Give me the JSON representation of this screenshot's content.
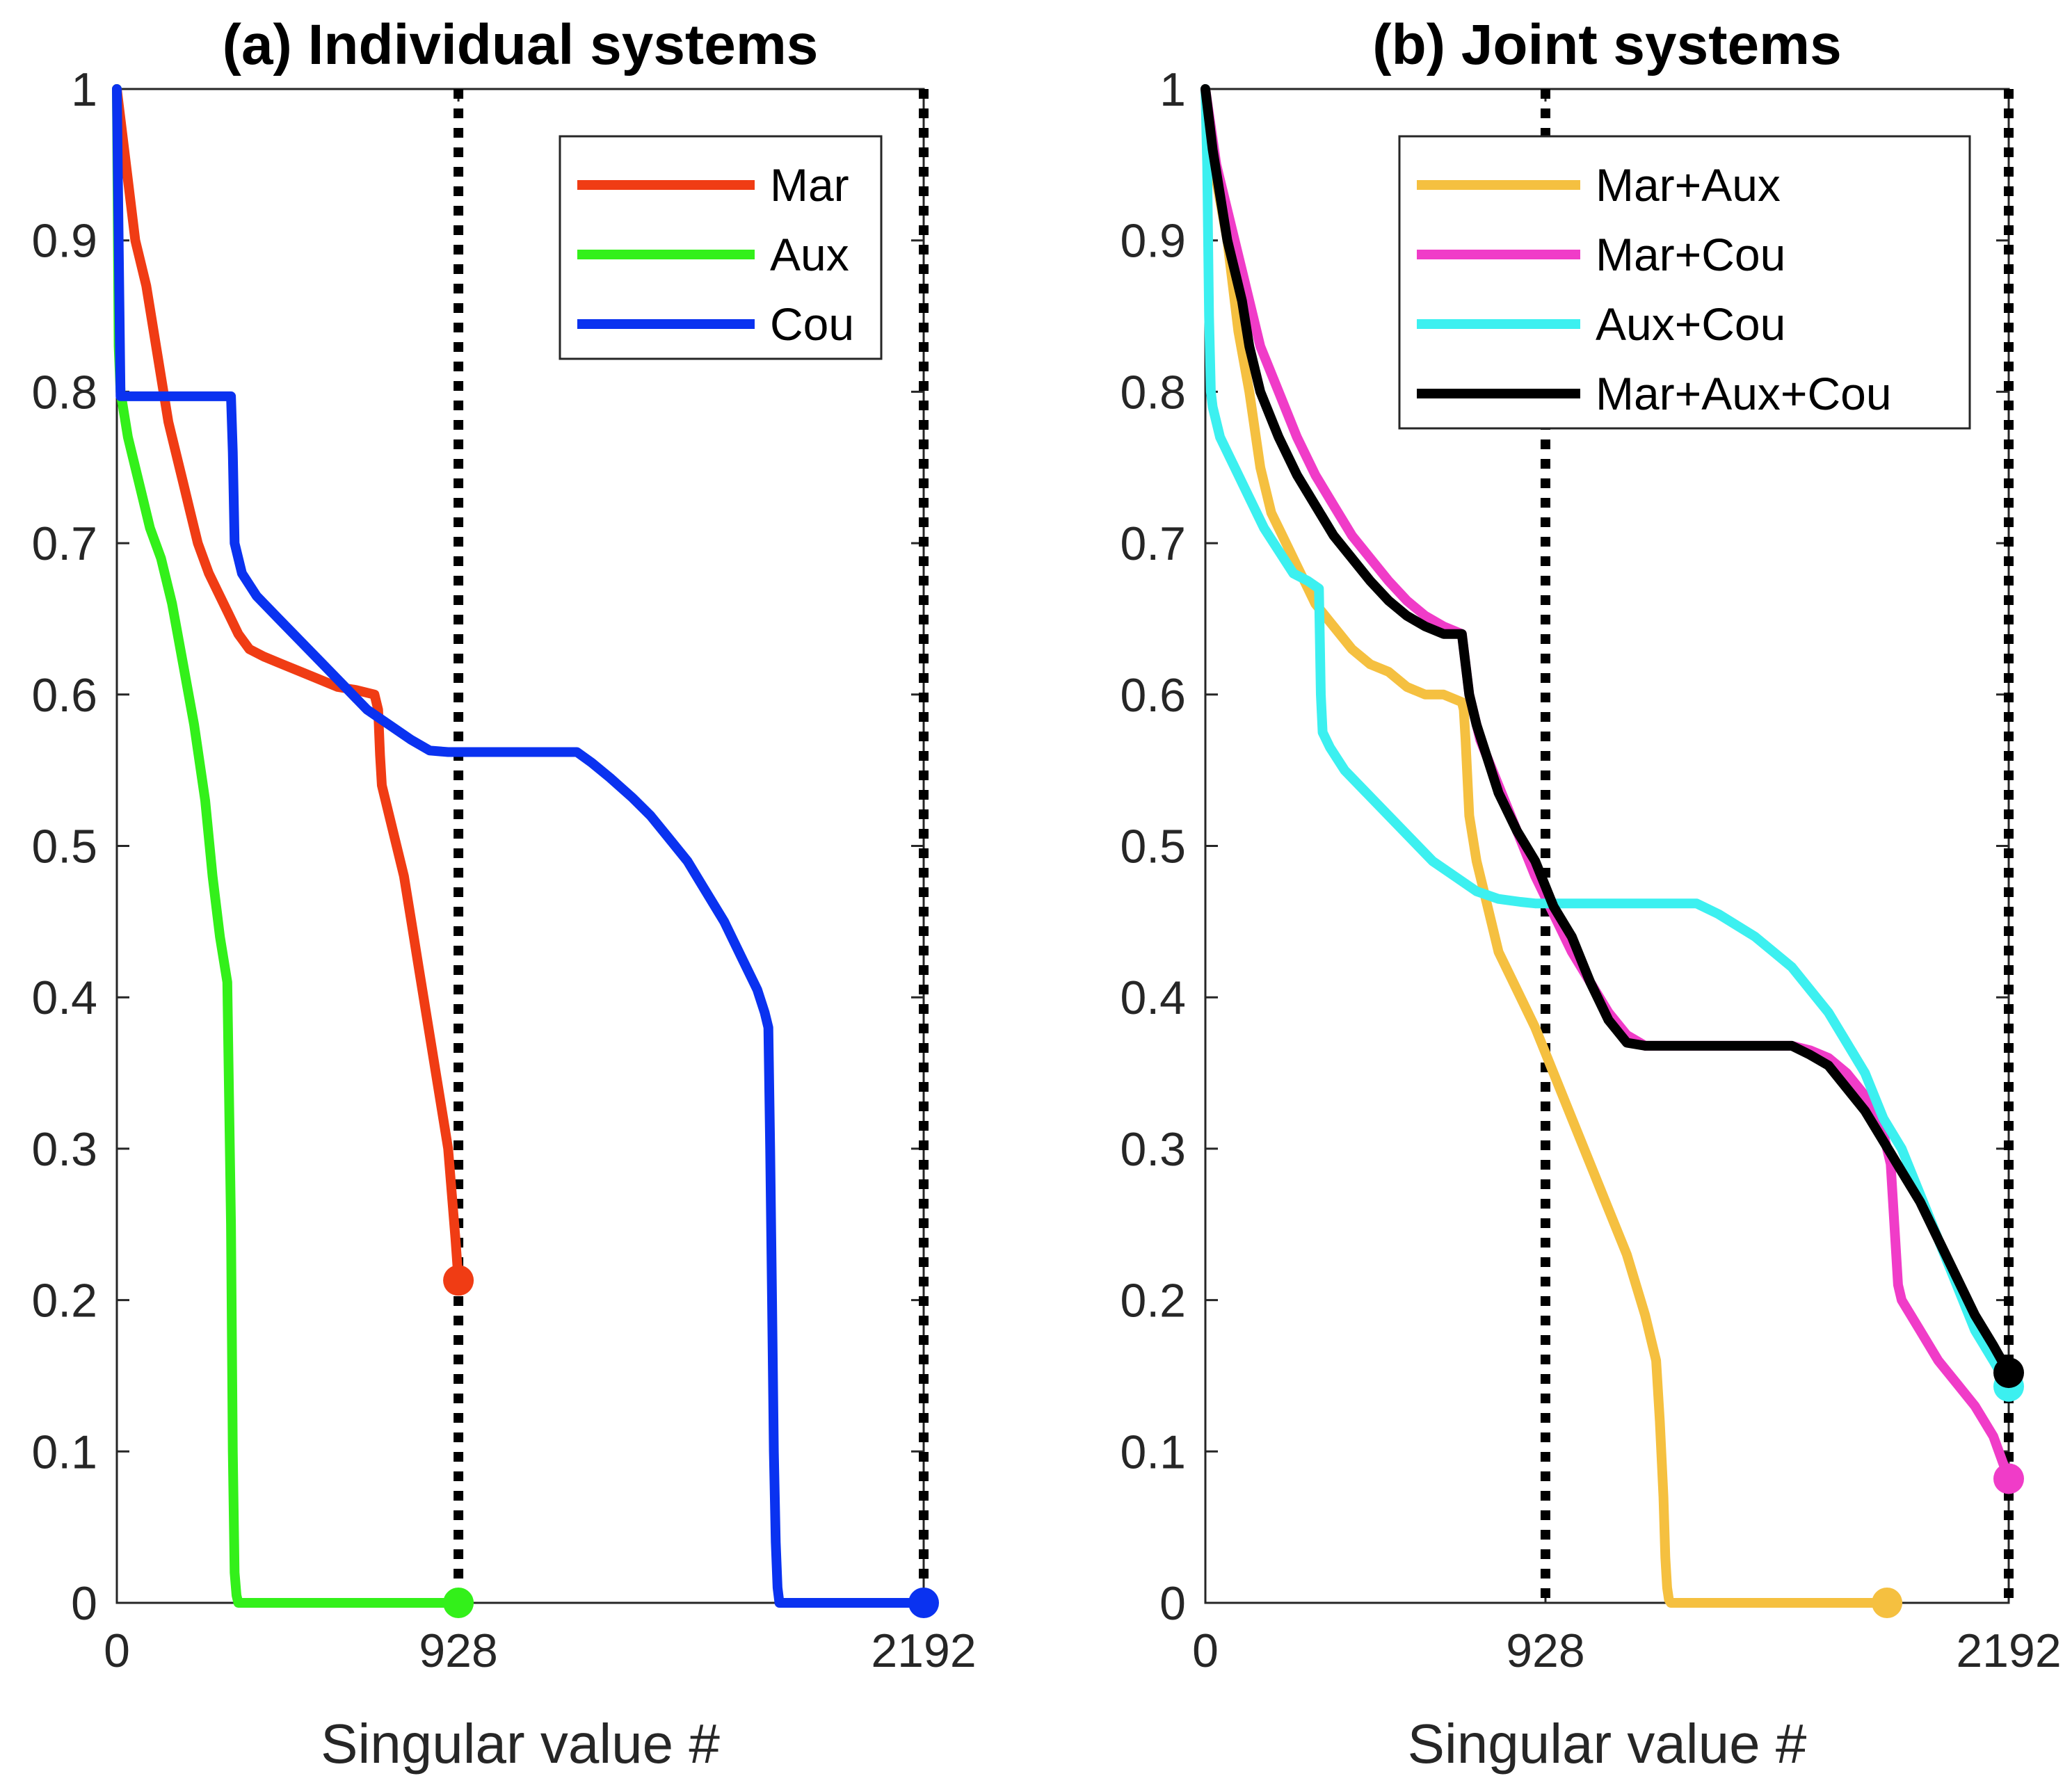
{
  "chart_data": [
    {
      "type": "line",
      "title": "(a) Individual systems",
      "xlabel": "Singular value #",
      "ylabel": "",
      "xlim": [
        0,
        2192
      ],
      "ylim": [
        0,
        1
      ],
      "xticks": [
        0,
        928,
        2192
      ],
      "yticks": [
        0,
        0.1,
        0.2,
        0.3,
        0.4,
        0.5,
        0.6,
        0.7,
        0.8,
        0.9,
        1
      ],
      "vlines": [
        928,
        2192
      ],
      "legend": "top-right",
      "grid": false,
      "series": [
        {
          "name": "Mar",
          "color": "#f03c14",
          "end_marker": [
            928,
            0.213
          ],
          "x": [
            0,
            10,
            20,
            30,
            40,
            50,
            60,
            80,
            100,
            120,
            140,
            160,
            180,
            200,
            220,
            250,
            280,
            300,
            330,
            360,
            400,
            450,
            500,
            550,
            600,
            650,
            700,
            710,
            715,
            720,
            740,
            760,
            780,
            800,
            820,
            840,
            860,
            880,
            900,
            910,
            920,
            928
          ],
          "y": [
            1.0,
            0.98,
            0.96,
            0.94,
            0.92,
            0.9,
            0.89,
            0.87,
            0.84,
            0.81,
            0.78,
            0.76,
            0.74,
            0.72,
            0.7,
            0.68,
            0.665,
            0.655,
            0.64,
            0.63,
            0.625,
            0.62,
            0.615,
            0.61,
            0.605,
            0.603,
            0.6,
            0.59,
            0.56,
            0.54,
            0.52,
            0.5,
            0.48,
            0.45,
            0.42,
            0.39,
            0.36,
            0.33,
            0.3,
            0.27,
            0.24,
            0.213
          ]
        },
        {
          "name": "Aux",
          "color": "#33f01a",
          "end_marker": [
            928,
            0.0
          ],
          "x": [
            0,
            5,
            10,
            30,
            60,
            90,
            120,
            150,
            180,
            210,
            240,
            260,
            280,
            300,
            310,
            315,
            320,
            325,
            330,
            928
          ],
          "y": [
            1.0,
            0.83,
            0.8,
            0.77,
            0.74,
            0.71,
            0.69,
            0.66,
            0.62,
            0.58,
            0.53,
            0.48,
            0.44,
            0.41,
            0.25,
            0.1,
            0.02,
            0.005,
            0.0,
            0.0
          ]
        },
        {
          "name": "Cou",
          "color": "#0a32f0",
          "end_marker": [
            2192,
            0.0
          ],
          "x": [
            0,
            5,
            10,
            310,
            315,
            320,
            340,
            380,
            440,
            500,
            560,
            620,
            680,
            740,
            800,
            850,
            900,
            928,
            1000,
            1100,
            1200,
            1250,
            1290,
            1340,
            1400,
            1450,
            1500,
            1550,
            1600,
            1650,
            1700,
            1740,
            1760,
            1770,
            1775,
            1780,
            1785,
            1790,
            1795,
            1800,
            1810,
            2192
          ],
          "y": [
            1.0,
            0.9,
            0.797,
            0.797,
            0.76,
            0.7,
            0.68,
            0.665,
            0.65,
            0.635,
            0.62,
            0.605,
            0.59,
            0.58,
            0.57,
            0.563,
            0.562,
            0.562,
            0.562,
            0.562,
            0.562,
            0.562,
            0.555,
            0.545,
            0.532,
            0.52,
            0.505,
            0.49,
            0.47,
            0.45,
            0.425,
            0.405,
            0.39,
            0.38,
            0.3,
            0.2,
            0.1,
            0.04,
            0.01,
            0.0,
            0.0,
            0.0
          ]
        }
      ]
    },
    {
      "type": "line",
      "title": "(b) Joint systems",
      "xlabel": "Singular value #",
      "ylabel": "",
      "xlim": [
        0,
        2192
      ],
      "ylim": [
        0,
        1
      ],
      "xticks": [
        0,
        928,
        2192
      ],
      "yticks": [
        0,
        0.1,
        0.2,
        0.3,
        0.4,
        0.5,
        0.6,
        0.7,
        0.8,
        0.9,
        1
      ],
      "vlines": [
        928,
        2192
      ],
      "legend": "top-right",
      "grid": false,
      "series": [
        {
          "name": "Mar+Aux",
          "color": "#f5c040",
          "end_marker": [
            1860,
            0.0
          ],
          "x": [
            0,
            30,
            60,
            90,
            120,
            150,
            180,
            210,
            240,
            270,
            300,
            350,
            400,
            450,
            500,
            550,
            600,
            650,
            700,
            705,
            710,
            720,
            740,
            760,
            780,
            800,
            850,
            900,
            950,
            1000,
            1050,
            1100,
            1150,
            1200,
            1230,
            1240,
            1250,
            1255,
            1260,
            1265,
            1270,
            1860
          ],
          "y": [
            1.0,
            0.94,
            0.9,
            0.84,
            0.8,
            0.75,
            0.72,
            0.705,
            0.69,
            0.675,
            0.66,
            0.645,
            0.63,
            0.62,
            0.615,
            0.605,
            0.6,
            0.6,
            0.595,
            0.59,
            0.57,
            0.52,
            0.49,
            0.47,
            0.45,
            0.43,
            0.405,
            0.38,
            0.35,
            0.32,
            0.29,
            0.26,
            0.23,
            0.19,
            0.16,
            0.12,
            0.07,
            0.03,
            0.01,
            0.002,
            0.0,
            0.0
          ]
        },
        {
          "name": "Mar+Cou",
          "color": "#f03cc8",
          "end_marker": [
            2192,
            0.082
          ],
          "x": [
            0,
            30,
            60,
            100,
            150,
            200,
            250,
            300,
            350,
            400,
            450,
            500,
            550,
            600,
            650,
            700,
            720,
            750,
            800,
            850,
            900,
            950,
            1000,
            1050,
            1100,
            1150,
            1200,
            1250,
            1300,
            1400,
            1500,
            1600,
            1650,
            1700,
            1750,
            1800,
            1850,
            1870,
            1880,
            1890,
            1900,
            1950,
            2000,
            2050,
            2100,
            2150,
            2192
          ],
          "y": [
            1.0,
            0.95,
            0.92,
            0.88,
            0.83,
            0.8,
            0.77,
            0.745,
            0.725,
            0.705,
            0.69,
            0.675,
            0.662,
            0.652,
            0.645,
            0.64,
            0.6,
            0.57,
            0.54,
            0.51,
            0.48,
            0.455,
            0.43,
            0.41,
            0.39,
            0.375,
            0.368,
            0.368,
            0.368,
            0.368,
            0.368,
            0.368,
            0.365,
            0.36,
            0.35,
            0.335,
            0.31,
            0.29,
            0.25,
            0.21,
            0.2,
            0.18,
            0.16,
            0.145,
            0.13,
            0.11,
            0.082
          ]
        },
        {
          "name": "Aux+Cou",
          "color": "#3cf0f0",
          "end_marker": [
            2192,
            0.143
          ],
          "x": [
            0,
            5,
            10,
            15,
            20,
            40,
            80,
            120,
            160,
            200,
            240,
            280,
            310,
            315,
            320,
            340,
            380,
            440,
            500,
            560,
            620,
            680,
            740,
            800,
            860,
            900,
            928,
            1000,
            1100,
            1200,
            1300,
            1340,
            1400,
            1500,
            1600,
            1700,
            1750,
            1800,
            1850,
            1900,
            1950,
            2000,
            2050,
            2100,
            2150,
            2192
          ],
          "y": [
            1.0,
            0.95,
            0.85,
            0.8,
            0.79,
            0.77,
            0.75,
            0.73,
            0.71,
            0.695,
            0.68,
            0.675,
            0.67,
            0.6,
            0.575,
            0.565,
            0.55,
            0.535,
            0.52,
            0.505,
            0.49,
            0.48,
            0.47,
            0.465,
            0.463,
            0.462,
            0.462,
            0.462,
            0.462,
            0.462,
            0.462,
            0.462,
            0.455,
            0.44,
            0.42,
            0.39,
            0.37,
            0.35,
            0.32,
            0.3,
            0.27,
            0.24,
            0.21,
            0.18,
            0.16,
            0.143
          ]
        },
        {
          "name": "Mar+Aux+Cou",
          "color": "#000000",
          "end_marker": [
            2192,
            0.152
          ],
          "x": [
            0,
            20,
            40,
            60,
            80,
            100,
            120,
            150,
            200,
            250,
            300,
            350,
            400,
            450,
            500,
            550,
            600,
            650,
            700,
            710,
            720,
            740,
            760,
            780,
            800,
            850,
            900,
            950,
            1000,
            1050,
            1100,
            1150,
            1200,
            1250,
            1300,
            1400,
            1500,
            1600,
            1650,
            1700,
            1750,
            1800,
            1850,
            1900,
            1950,
            2000,
            2050,
            2100,
            2150,
            2192
          ],
          "y": [
            1.0,
            0.96,
            0.93,
            0.9,
            0.88,
            0.86,
            0.83,
            0.8,
            0.77,
            0.745,
            0.725,
            0.705,
            0.69,
            0.675,
            0.662,
            0.652,
            0.645,
            0.64,
            0.64,
            0.62,
            0.6,
            0.58,
            0.565,
            0.55,
            0.535,
            0.51,
            0.49,
            0.46,
            0.44,
            0.41,
            0.385,
            0.37,
            0.368,
            0.368,
            0.368,
            0.368,
            0.368,
            0.368,
            0.362,
            0.355,
            0.34,
            0.325,
            0.305,
            0.285,
            0.265,
            0.24,
            0.215,
            0.19,
            0.17,
            0.152
          ]
        }
      ]
    }
  ]
}
